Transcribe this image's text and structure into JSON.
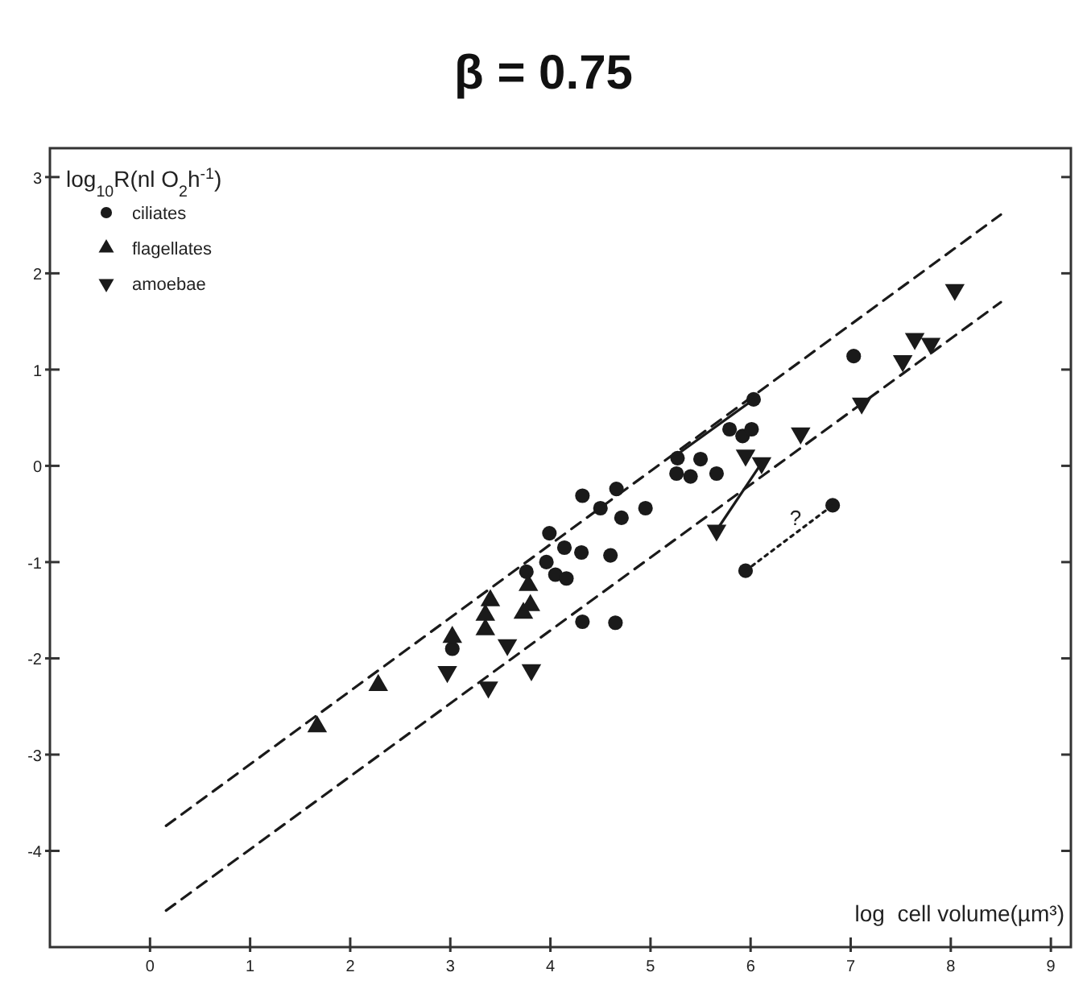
{
  "chart_data": {
    "type": "scatter",
    "title": "β = 0.75",
    "xlabel": "log  cell volume(µm³)",
    "ylabel": "log$_{10}$R(nl O$_{2}$h$^{-1}$)",
    "xlim": [
      -1,
      9.2
    ],
    "ylim": [
      -5,
      3.3
    ],
    "xticks": [
      0,
      1,
      2,
      3,
      4,
      5,
      6,
      7,
      8,
      9
    ],
    "yticks": [
      -4,
      -3,
      -2,
      -1,
      0,
      1,
      2,
      3
    ],
    "legend": "top left",
    "grid": false,
    "annotations": [
      "?"
    ],
    "series": [
      {
        "name": "ciliates",
        "color": "#1a1a1a",
        "marker": "circle",
        "x": [
          6.03,
          5.79,
          5.92,
          6.01,
          5.27,
          5.5,
          5.26,
          5.4,
          5.66,
          7.03,
          6.82,
          5.95,
          4.32,
          4.66,
          4.5,
          4.71,
          4.95,
          3.99,
          4.14,
          4.31,
          4.6,
          3.96,
          4.05,
          4.16,
          4.32,
          4.65,
          3.02,
          3.76
        ],
        "values": [
          0.69,
          0.38,
          0.31,
          0.38,
          0.08,
          0.07,
          -0.08,
          -0.11,
          -0.08,
          1.14,
          -0.41,
          -1.09,
          -0.31,
          -0.24,
          -0.44,
          -0.54,
          -0.44,
          -0.7,
          -0.85,
          -0.9,
          -0.93,
          -1.0,
          -1.13,
          -1.17,
          -1.62,
          -1.63,
          -1.9,
          -1.1
        ]
      },
      {
        "name": "flagellates",
        "color": "#1a1a1a",
        "marker": "triangle",
        "x": [
          1.67,
          2.28,
          3.02,
          3.4,
          3.35,
          3.35,
          3.78,
          3.73,
          3.8
        ],
        "values": [
          -2.71,
          -2.28,
          -1.78,
          -1.4,
          -1.55,
          -1.7,
          -1.24,
          -1.53,
          -1.45
        ]
      },
      {
        "name": "amoebae",
        "color": "#1a1a1a",
        "marker": "triangle-down",
        "x": [
          2.97,
          3.38,
          3.81,
          3.57,
          5.66,
          6.11,
          5.95,
          6.5,
          7.11,
          7.52,
          7.64,
          7.8,
          8.04
        ],
        "values": [
          -2.14,
          -2.3,
          -2.12,
          -1.86,
          -0.67,
          0.03,
          0.11,
          0.34,
          0.65,
          1.09,
          1.32,
          1.27,
          1.83
        ]
      },
      {
        "type": "line",
        "color": "#1a1a1a",
        "line_style": "dashed",
        "x": [
          0.16,
          8.5
        ],
        "values": [
          -3.74,
          2.61
        ]
      },
      {
        "type": "line",
        "color": "#1a1a1a",
        "line_style": "dashed",
        "x": [
          0.16,
          8.5
        ],
        "values": [
          -4.62,
          1.7
        ]
      },
      {
        "type": "line",
        "color": "#1a1a1a",
        "line_style": "solid",
        "x": [
          5.27,
          6.03
        ],
        "values": [
          0.12,
          0.69
        ]
      },
      {
        "type": "line",
        "color": "#1a1a1a",
        "line_style": "solid",
        "x": [
          5.66,
          6.11
        ],
        "values": [
          -0.67,
          0.03
        ]
      },
      {
        "type": "line",
        "color": "#1a1a1a",
        "line_style": "dotted",
        "x": [
          5.95,
          6.82
        ],
        "values": [
          -1.09,
          -0.41
        ]
      }
    ]
  }
}
